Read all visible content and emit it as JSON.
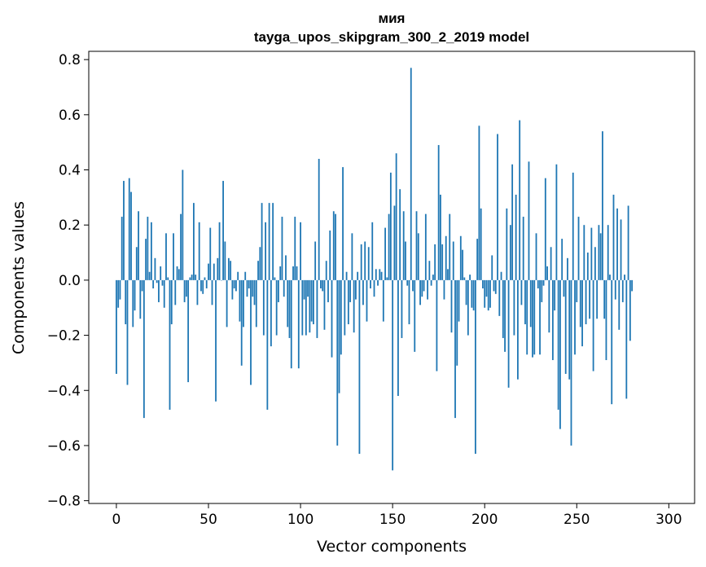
{
  "chart_data": {
    "type": "bar",
    "title": "мия",
    "subtitle": "tayga_upos_skipgram_300_2_2019 model",
    "xlabel": "Vector components",
    "ylabel": "Components values",
    "xlim": [
      -15,
      314
    ],
    "ylim": [
      -0.81,
      0.83
    ],
    "xticks": [
      0,
      50,
      100,
      150,
      200,
      250,
      300
    ],
    "yticks": [
      -0.8,
      -0.6,
      -0.4,
      -0.2,
      0.0,
      0.2,
      0.4,
      0.6,
      0.8
    ],
    "xtick_labels": [
      "0",
      "50",
      "100",
      "150",
      "200",
      "250",
      "300"
    ],
    "ytick_labels": [
      "−0.8",
      "−0.6",
      "−0.4",
      "−0.2",
      "0.0",
      "0.2",
      "0.4",
      "0.6",
      "0.8"
    ],
    "bar_color": "#1f77b4",
    "grid": false,
    "values": [
      -0.34,
      -0.1,
      -0.07,
      0.23,
      0.36,
      -0.16,
      -0.38,
      0.37,
      0.32,
      -0.17,
      -0.11,
      0.12,
      0.25,
      -0.14,
      -0.04,
      -0.5,
      0.15,
      0.23,
      0.03,
      0.21,
      -0.03,
      0.08,
      -0.01,
      -0.08,
      0.05,
      -0.02,
      -0.1,
      0.17,
      0.01,
      -0.47,
      -0.16,
      0.17,
      -0.09,
      0.05,
      0.04,
      0.24,
      0.4,
      -0.08,
      -0.06,
      -0.37,
      0.01,
      0.02,
      0.28,
      0.02,
      -0.09,
      0.21,
      -0.04,
      -0.05,
      0.01,
      -0.03,
      0.06,
      0.19,
      -0.09,
      0.06,
      -0.44,
      0.08,
      0.21,
      0.0,
      0.36,
      0.14,
      -0.17,
      0.08,
      0.07,
      -0.07,
      -0.03,
      -0.04,
      0.03,
      -0.15,
      -0.31,
      -0.17,
      0.03,
      -0.06,
      -0.03,
      -0.38,
      -0.06,
      -0.09,
      -0.17,
      0.07,
      0.12,
      0.28,
      -0.2,
      0.21,
      -0.47,
      0.28,
      -0.24,
      0.28,
      0.01,
      -0.2,
      -0.08,
      0.05,
      0.23,
      -0.06,
      0.09,
      -0.17,
      -0.21,
      -0.32,
      0.05,
      0.23,
      0.05,
      -0.32,
      0.21,
      -0.2,
      -0.07,
      -0.2,
      -0.06,
      -0.19,
      -0.15,
      -0.16,
      0.14,
      -0.21,
      0.44,
      -0.03,
      -0.04,
      -0.18,
      0.07,
      -0.08,
      0.18,
      -0.28,
      0.25,
      0.24,
      -0.6,
      -0.41,
      -0.27,
      0.41,
      -0.2,
      0.03,
      -0.16,
      -0.08,
      0.17,
      -0.19,
      -0.07,
      0.03,
      -0.63,
      0.13,
      -0.09,
      0.14,
      -0.15,
      0.12,
      -0.03,
      0.21,
      -0.06,
      0.04,
      -0.02,
      0.04,
      0.03,
      -0.15,
      0.19,
      0.01,
      0.24,
      0.39,
      -0.69,
      0.27,
      0.46,
      -0.42,
      0.33,
      -0.21,
      0.25,
      0.14,
      -0.02,
      -0.16,
      0.77,
      -0.04,
      -0.26,
      0.25,
      0.17,
      -0.09,
      -0.06,
      -0.04,
      0.24,
      -0.07,
      0.07,
      -0.02,
      0.02,
      0.13,
      -0.33,
      0.49,
      0.31,
      0.13,
      -0.07,
      0.16,
      0.04,
      0.24,
      -0.19,
      0.14,
      -0.5,
      -0.31,
      -0.15,
      0.16,
      0.11,
      0.01,
      -0.09,
      -0.2,
      0.02,
      -0.1,
      -0.11,
      -0.63,
      0.15,
      0.56,
      0.26,
      -0.03,
      -0.1,
      -0.06,
      -0.11,
      -0.1,
      0.09,
      -0.04,
      -0.05,
      0.53,
      -0.13,
      0.03,
      -0.21,
      -0.26,
      0.26,
      -0.39,
      0.2,
      0.42,
      -0.2,
      0.31,
      -0.36,
      0.58,
      -0.09,
      0.23,
      -0.16,
      -0.27,
      0.43,
      -0.17,
      -0.28,
      -0.27,
      0.17,
      -0.03,
      -0.27,
      -0.08,
      -0.02,
      0.37,
      0.05,
      -0.19,
      0.12,
      -0.29,
      -0.11,
      0.42,
      -0.47,
      -0.54,
      0.15,
      -0.06,
      -0.34,
      0.08,
      -0.36,
      -0.6,
      0.39,
      -0.27,
      -0.08,
      0.23,
      -0.17,
      -0.24,
      0.2,
      -0.16,
      0.1,
      -0.14,
      0.19,
      -0.33,
      0.12,
      -0.14,
      0.2,
      0.17,
      0.54,
      -0.14,
      -0.29,
      0.2,
      0.02,
      -0.45,
      0.31,
      -0.07,
      0.26,
      -0.18,
      0.22,
      -0.08,
      0.02,
      -0.43,
      0.27,
      -0.22,
      -0.04
    ]
  }
}
